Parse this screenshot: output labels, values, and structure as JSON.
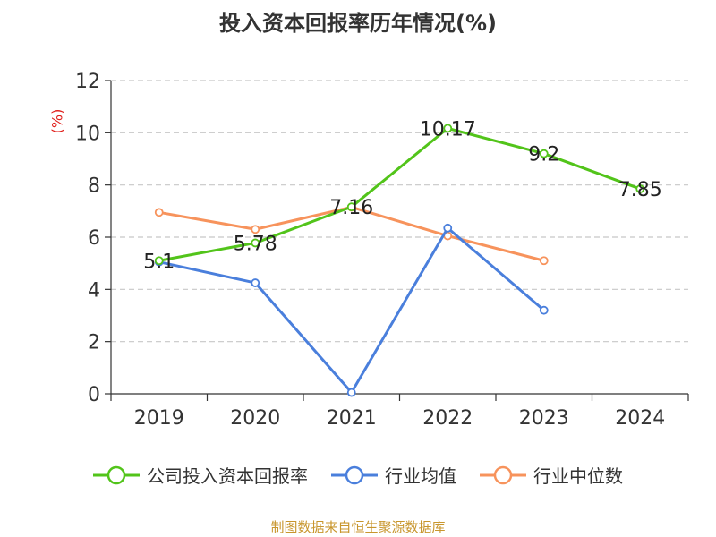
{
  "chart_data": {
    "type": "line",
    "title": "投入资本回报率历年情况(%)",
    "ylabel": "(%)",
    "categories": [
      "2019",
      "2020",
      "2021",
      "2022",
      "2023",
      "2024"
    ],
    "ylim": [
      0,
      12
    ],
    "yticks": [
      0,
      2,
      4,
      6,
      8,
      10,
      12
    ],
    "grid": true,
    "legend_position": "bottom",
    "series": [
      {
        "name": "公司投入资本回报率",
        "color": "#52c41a",
        "values": [
          5.1,
          5.78,
          7.16,
          10.17,
          9.2,
          7.85
        ],
        "show_labels": true
      },
      {
        "name": "行业均值",
        "color": "#4a7fdc",
        "values": [
          5.05,
          4.25,
          0.05,
          6.35,
          3.2,
          null
        ],
        "show_labels": false
      },
      {
        "name": "行业中位数",
        "color": "#f7935c",
        "values": [
          6.95,
          6.3,
          7.15,
          6.05,
          5.1,
          null
        ],
        "show_labels": false
      }
    ],
    "data_labels": [
      "5.1",
      "5.78",
      "7.16",
      "10.17",
      "9.2",
      "7.85"
    ],
    "source": "制图数据来自恒生聚源数据库"
  }
}
